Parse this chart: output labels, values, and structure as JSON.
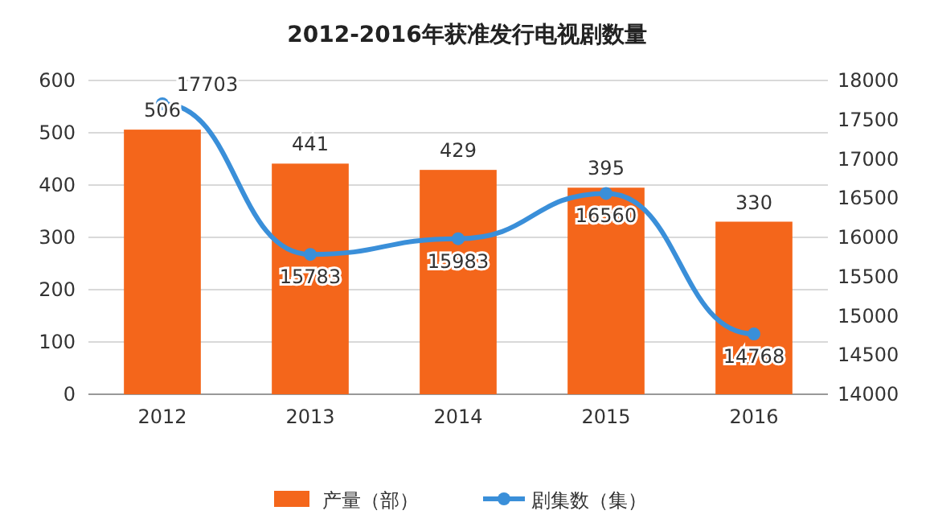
{
  "chart_data": {
    "type": "bar",
    "title": "2012-2016年获准发行电视剧数量",
    "categories": [
      "2012",
      "2013",
      "2014",
      "2015",
      "2016"
    ],
    "series": [
      {
        "name": "产量（部）",
        "color": "#f4661b",
        "values": [
          506,
          441,
          429,
          395,
          330
        ]
      },
      {
        "name": "剧集数（集）",
        "type": "line",
        "axis": "y2",
        "color": "#3a8fd9",
        "values": [
          17703,
          15783,
          15983,
          16560,
          14768
        ]
      }
    ],
    "ylim": [
      0,
      600
    ],
    "yticks": [
      0,
      100,
      200,
      300,
      400,
      500,
      600
    ],
    "y2lim": [
      14000,
      18000
    ],
    "y2ticks": [
      14000,
      14500,
      15000,
      15500,
      16000,
      16500,
      17000,
      17500,
      18000
    ],
    "grid": "y",
    "legend": "bottom",
    "data_labels": true,
    "marker": "circle"
  }
}
